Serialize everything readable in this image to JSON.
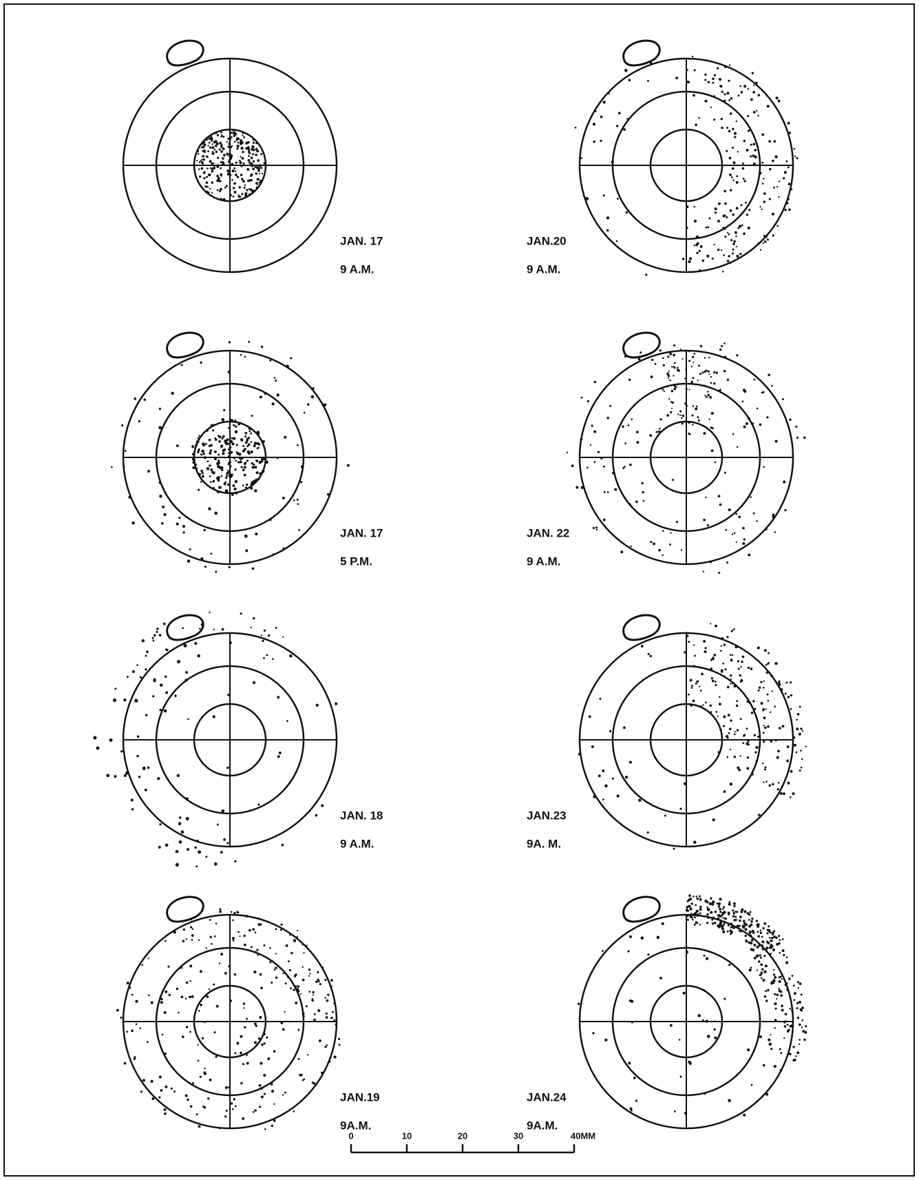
{
  "panels": [
    {
      "date": "JAN. 17",
      "time": "9 A.M."
    },
    {
      "date": "JAN. 17",
      "time": "5 P.M."
    },
    {
      "date": "JAN. 18",
      "time": "9 A.M."
    },
    {
      "date": "JAN.19",
      "time": "9A.M."
    },
    {
      "date": "JAN.20",
      "time": "9 A.M."
    },
    {
      "date": "JAN. 22",
      "time": "9 A.M."
    },
    {
      "date": "JAN.23",
      "time": "9A. M."
    },
    {
      "date": "JAN.24",
      "time": "9A.M."
    }
  ],
  "scale_bar": {
    "labels": [
      "0",
      "10",
      "20",
      "30",
      "40MM"
    ]
  }
}
